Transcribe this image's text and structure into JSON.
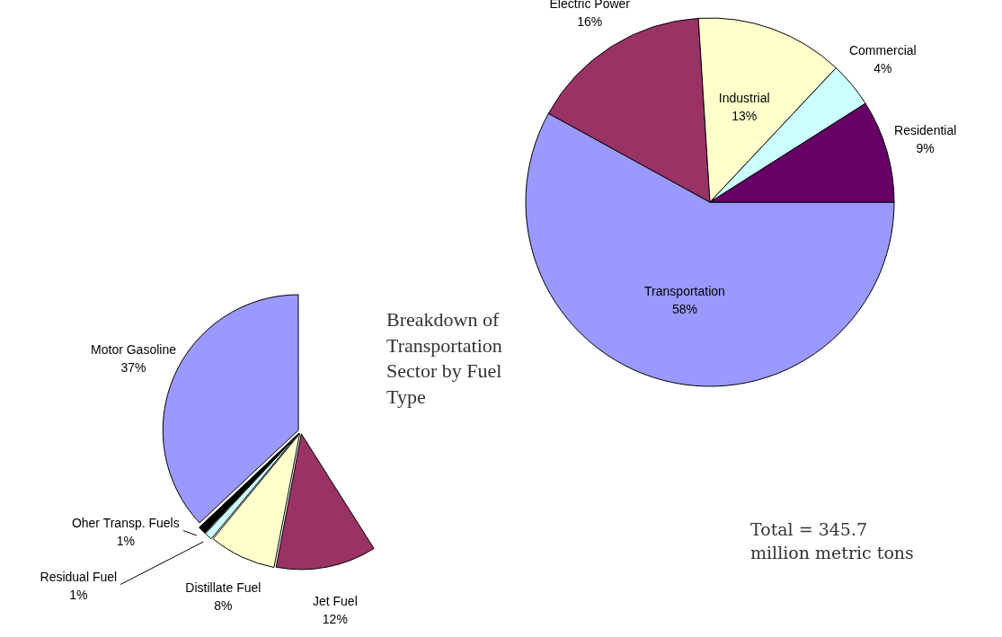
{
  "chart_data": [
    {
      "type": "pie",
      "categories": [
        "Transportation",
        "Electric Power",
        "Industrial",
        "Commercial",
        "Residential"
      ],
      "values": [
        58,
        16,
        13,
        4,
        9
      ],
      "value_labels": [
        "58%",
        "16%",
        "13%",
        "4%",
        "9%"
      ],
      "colors": [
        "#9999ff",
        "#993366",
        "#ffffcc",
        "#ccffff",
        "#660066"
      ],
      "legend": false,
      "annotations": [
        "Total = 345.7 million metric tons"
      ]
    },
    {
      "type": "pie",
      "title": "Breakdown of Transportation Sector by Fuel Type",
      "categories": [
        "Jet Fuel",
        "Distillate Fuel",
        "Residual Fuel",
        "Oher Transp. Fuels",
        "Motor Gasoline"
      ],
      "values": [
        12,
        8,
        1,
        1,
        37
      ],
      "value_labels": [
        "12%",
        "8%",
        "1%",
        "1%",
        "37%"
      ],
      "colors": [
        "#993366",
        "#ffffcc",
        "#ccffff",
        "#000000",
        "#9999ff"
      ],
      "legend": false
    }
  ]
}
